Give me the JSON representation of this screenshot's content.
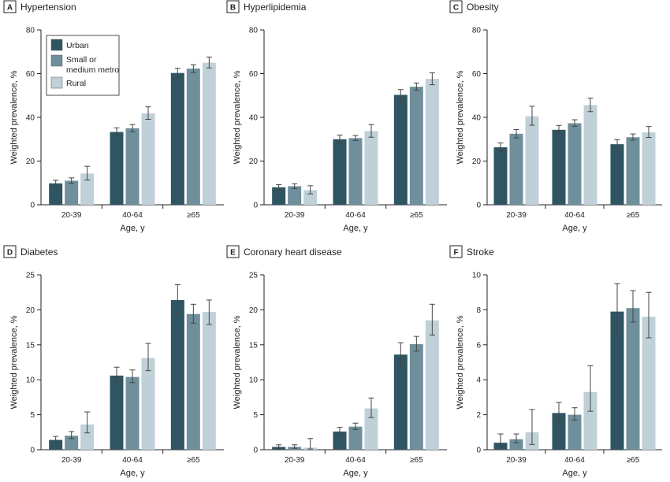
{
  "figure": {
    "series_names": [
      "Urban",
      "Small or medium metro",
      "Rural"
    ],
    "legend_lines": [
      "Urban",
      "Small or",
      "medium metro",
      "Rural"
    ],
    "colors": {
      "urban": "#2f5563",
      "small_metro": "#6e8f9b",
      "rural": "#bfd0d8",
      "error_bar": "#444444",
      "axis": "#231f20"
    }
  },
  "chart_data": [
    {
      "letter": "A",
      "title": "Hypertension",
      "type": "bar",
      "xlabel": "Age, y",
      "ylabel": "Weighted prevalence, %",
      "ylim": [
        0,
        80
      ],
      "yticks": [
        0,
        20,
        40,
        60,
        80
      ],
      "categories": [
        "20-39",
        "40-64",
        "≥65"
      ],
      "legend": "top-left",
      "series": [
        {
          "name": "Urban",
          "values": [
            9.8,
            33.3,
            60.3
          ],
          "ci_low": [
            8.6,
            31.5,
            58.0
          ],
          "ci_high": [
            11.2,
            35.2,
            62.5
          ]
        },
        {
          "name": "Small or medium metro",
          "values": [
            11.0,
            35.0,
            62.3
          ],
          "ci_low": [
            9.8,
            33.5,
            60.5
          ],
          "ci_high": [
            12.3,
            36.7,
            64.1
          ]
        },
        {
          "name": "Rural",
          "values": [
            14.3,
            41.8,
            65.0
          ],
          "ci_low": [
            11.3,
            39.1,
            62.6
          ],
          "ci_high": [
            17.6,
            44.8,
            67.6
          ]
        }
      ]
    },
    {
      "letter": "B",
      "title": "Hyperlipidemia",
      "type": "bar",
      "xlabel": "Age, y",
      "ylabel": "Weighted prevalence, %",
      "ylim": [
        0,
        80
      ],
      "yticks": [
        0,
        20,
        40,
        60,
        80
      ],
      "categories": [
        "20-39",
        "40-64",
        "≥65"
      ],
      "series": [
        {
          "name": "Urban",
          "values": [
            8.0,
            30.0,
            50.3
          ],
          "ci_low": [
            6.8,
            28.3,
            48.0
          ],
          "ci_high": [
            9.2,
            31.9,
            52.7
          ]
        },
        {
          "name": "Small or medium metro",
          "values": [
            8.5,
            30.5,
            54.0
          ],
          "ci_low": [
            7.4,
            29.4,
            52.4
          ],
          "ci_high": [
            9.6,
            31.7,
            55.7
          ]
        },
        {
          "name": "Rural",
          "values": [
            6.7,
            33.7,
            57.6
          ],
          "ci_low": [
            5.0,
            30.9,
            54.9
          ],
          "ci_high": [
            8.7,
            36.7,
            60.4
          ]
        }
      ]
    },
    {
      "letter": "C",
      "title": "Obesity",
      "type": "bar",
      "xlabel": "Age, y",
      "ylabel": "Weighted prevalence, %",
      "ylim": [
        0,
        80
      ],
      "yticks": [
        0,
        20,
        40,
        60,
        80
      ],
      "categories": [
        "20-39",
        "40-64",
        "≥65"
      ],
      "series": [
        {
          "name": "Urban",
          "values": [
            26.3,
            34.3,
            27.7
          ],
          "ci_low": [
            24.5,
            32.6,
            25.7
          ],
          "ci_high": [
            28.3,
            36.3,
            29.8
          ]
        },
        {
          "name": "Small or medium metro",
          "values": [
            32.5,
            37.3,
            30.9
          ],
          "ci_low": [
            30.6,
            35.9,
            29.6
          ],
          "ci_high": [
            34.4,
            38.9,
            32.4
          ]
        },
        {
          "name": "Rural",
          "values": [
            40.5,
            45.6,
            33.1
          ],
          "ci_low": [
            36.4,
            42.6,
            30.8
          ],
          "ci_high": [
            45.1,
            48.8,
            35.8
          ]
        }
      ]
    },
    {
      "letter": "D",
      "title": "Diabetes",
      "type": "bar",
      "xlabel": "Age, y",
      "ylabel": "Weighted prevalence, %",
      "ylim": [
        0,
        25
      ],
      "yticks": [
        0,
        5,
        10,
        15,
        20,
        25
      ],
      "categories": [
        "20-39",
        "40-64",
        "≥65"
      ],
      "series": [
        {
          "name": "Urban",
          "values": [
            1.4,
            10.6,
            21.4
          ],
          "ci_low": [
            1.0,
            9.6,
            19.4
          ],
          "ci_high": [
            1.9,
            11.8,
            23.6
          ]
        },
        {
          "name": "Small or medium metro",
          "values": [
            2.0,
            10.4,
            19.4
          ],
          "ci_low": [
            1.6,
            9.6,
            18.1
          ],
          "ci_high": [
            2.6,
            11.4,
            20.8
          ]
        },
        {
          "name": "Rural",
          "values": [
            3.6,
            13.1,
            19.7
          ],
          "ci_low": [
            2.4,
            11.3,
            17.9
          ],
          "ci_high": [
            5.4,
            15.2,
            21.4
          ]
        }
      ]
    },
    {
      "letter": "E",
      "title": "Coronary heart disease",
      "type": "bar",
      "xlabel": "Age, y",
      "ylabel": "Weighted prevalence, %",
      "ylim": [
        0,
        25
      ],
      "yticks": [
        0,
        5,
        10,
        15,
        20,
        25
      ],
      "categories": [
        "20-39",
        "40-64",
        "≥65"
      ],
      "series": [
        {
          "name": "Urban",
          "values": [
            0.4,
            2.6,
            13.6
          ],
          "ci_low": [
            0.2,
            2.1,
            11.9
          ],
          "ci_high": [
            0.7,
            3.2,
            15.3
          ]
        },
        {
          "name": "Small or medium metro",
          "values": [
            0.4,
            3.3,
            15.1
          ],
          "ci_low": [
            0.2,
            2.9,
            14.1
          ],
          "ci_high": [
            0.7,
            3.8,
            16.2
          ]
        },
        {
          "name": "Rural",
          "values": [
            0.3,
            5.9,
            18.5
          ],
          "ci_low": [
            0.1,
            4.6,
            16.4
          ],
          "ci_high": [
            1.6,
            7.4,
            20.8
          ]
        }
      ]
    },
    {
      "letter": "F",
      "title": "Stroke",
      "type": "bar",
      "xlabel": "Age, y",
      "ylabel": "Weighted prevalence, %",
      "ylim": [
        0,
        10
      ],
      "yticks": [
        0,
        2,
        4,
        6,
        8,
        10
      ],
      "categories": [
        "20-39",
        "40-64",
        "≥65"
      ],
      "series": [
        {
          "name": "Urban",
          "values": [
            0.4,
            2.1,
            7.9
          ],
          "ci_low": [
            0.2,
            1.7,
            6.5
          ],
          "ci_high": [
            0.9,
            2.7,
            9.5
          ]
        },
        {
          "name": "Small or medium metro",
          "values": [
            0.6,
            2.0,
            8.1
          ],
          "ci_low": [
            0.4,
            1.7,
            7.3
          ],
          "ci_high": [
            0.9,
            2.4,
            9.1
          ]
        },
        {
          "name": "Rural",
          "values": [
            1.0,
            3.3,
            7.6
          ],
          "ci_low": [
            0.3,
            2.2,
            6.4
          ],
          "ci_high": [
            2.3,
            4.8,
            9.0
          ]
        }
      ]
    }
  ]
}
